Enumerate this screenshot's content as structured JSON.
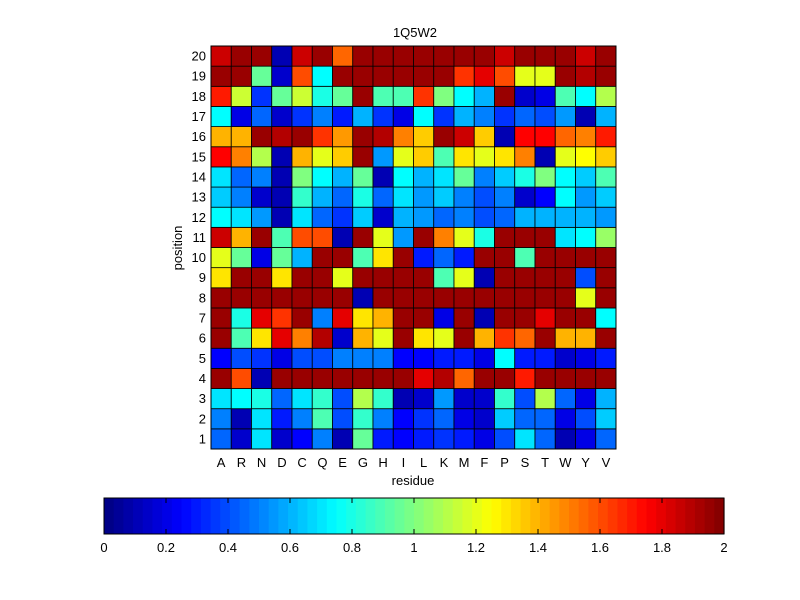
{
  "chart_data": {
    "type": "heatmap",
    "title": "1Q5W2",
    "xlabel": "residue",
    "ylabel": "position",
    "x_categories": [
      "A",
      "R",
      "N",
      "D",
      "C",
      "Q",
      "E",
      "G",
      "H",
      "I",
      "L",
      "K",
      "M",
      "F",
      "P",
      "S",
      "T",
      "W",
      "Y",
      "V"
    ],
    "y_categories": [
      "1",
      "2",
      "3",
      "4",
      "5",
      "6",
      "7",
      "8",
      "9",
      "10",
      "11",
      "12",
      "13",
      "14",
      "15",
      "16",
      "17",
      "18",
      "19",
      "20"
    ],
    "color_scale": {
      "min": 0,
      "max": 2,
      "colormap": "jet",
      "ticks": [
        "0",
        "0.2",
        "0.4",
        "0.6",
        "0.8",
        "1",
        "1.2",
        "1.4",
        "1.6",
        "1.8",
        "2"
      ]
    },
    "values": [
      [
        0.45,
        0.15,
        0.7,
        0.15,
        0.25,
        0.5,
        0.1,
        0.95,
        0.3,
        0.25,
        0.3,
        0.35,
        0.3,
        0.2,
        0.4,
        0.7,
        0.45,
        0.1,
        0.2,
        0.45
      ],
      [
        0.5,
        0.1,
        0.7,
        0.3,
        0.5,
        0.9,
        0.4,
        0.85,
        0.5,
        0.25,
        0.35,
        0.45,
        0.2,
        0.15,
        0.65,
        0.45,
        0.45,
        0.2,
        0.4,
        0.65
      ],
      [
        0.7,
        0.75,
        0.8,
        0.45,
        0.7,
        0.85,
        0.4,
        1.1,
        0.85,
        0.1,
        0.15,
        0.55,
        0.15,
        0.15,
        0.85,
        0.4,
        1.1,
        0.45,
        0.2,
        0.6
      ],
      [
        1.95,
        1.6,
        0.1,
        1.95,
        1.95,
        1.95,
        1.95,
        1.95,
        1.95,
        1.95,
        1.8,
        1.9,
        1.55,
        1.95,
        1.95,
        1.7,
        1.95,
        1.95,
        1.95,
        1.95
      ],
      [
        0.25,
        0.4,
        0.35,
        0.2,
        0.4,
        0.4,
        0.5,
        0.5,
        0.5,
        0.25,
        0.25,
        0.3,
        0.3,
        0.2,
        0.75,
        0.3,
        0.3,
        0.15,
        0.2,
        0.3
      ],
      [
        1.95,
        0.9,
        1.3,
        1.8,
        1.5,
        1.9,
        0.15,
        1.4,
        1.2,
        1.95,
        1.3,
        1.2,
        1.95,
        1.4,
        1.65,
        1.55,
        1.95,
        1.4,
        1.4,
        1.95
      ],
      [
        1.95,
        0.8,
        1.8,
        1.65,
        1.95,
        0.5,
        1.8,
        1.3,
        1.4,
        1.95,
        1.95,
        0.2,
        1.95,
        0.1,
        1.95,
        1.95,
        1.8,
        1.95,
        1.95,
        0.75
      ],
      [
        1.95,
        1.95,
        1.95,
        1.95,
        1.95,
        1.95,
        1.95,
        0.1,
        1.95,
        1.95,
        1.95,
        1.95,
        1.95,
        1.95,
        1.95,
        1.95,
        1.95,
        1.95,
        1.2,
        1.95
      ],
      [
        1.3,
        1.95,
        1.95,
        1.3,
        1.95,
        1.95,
        1.2,
        1.95,
        1.95,
        1.95,
        1.95,
        0.9,
        1.2,
        0.1,
        1.95,
        1.95,
        1.95,
        1.95,
        0.4,
        1.95
      ],
      [
        1.2,
        0.95,
        0.2,
        0.95,
        0.6,
        1.95,
        1.95,
        0.9,
        1.3,
        1.95,
        0.3,
        0.45,
        0.3,
        1.95,
        1.95,
        0.9,
        1.95,
        1.95,
        1.95,
        1.95
      ],
      [
        1.85,
        1.4,
        1.95,
        0.9,
        1.6,
        1.6,
        0.1,
        1.95,
        1.2,
        0.55,
        1.95,
        1.5,
        1.2,
        0.8,
        1.95,
        1.95,
        1.95,
        0.7,
        0.75,
        1.05
      ],
      [
        0.75,
        0.7,
        0.55,
        0.1,
        0.7,
        0.45,
        0.35,
        0.65,
        0.15,
        0.6,
        0.55,
        0.45,
        0.5,
        0.4,
        0.45,
        0.6,
        0.6,
        0.6,
        0.6,
        0.55
      ],
      [
        0.65,
        0.5,
        0.15,
        0.1,
        0.85,
        0.6,
        0.45,
        0.8,
        0.45,
        0.7,
        0.55,
        0.65,
        0.5,
        0.4,
        0.5,
        0.15,
        0.25,
        0.75,
        0.55,
        0.65
      ],
      [
        0.7,
        0.45,
        0.5,
        0.1,
        1.0,
        0.75,
        0.6,
        0.95,
        0.1,
        0.75,
        0.6,
        0.7,
        0.95,
        0.5,
        0.65,
        0.8,
        1.0,
        0.75,
        0.65,
        0.9
      ],
      [
        1.75,
        1.5,
        1.1,
        0.1,
        1.4,
        1.2,
        1.35,
        1.95,
        0.55,
        1.2,
        1.35,
        0.9,
        1.3,
        1.2,
        1.3,
        1.5,
        0.1,
        1.2,
        1.25,
        1.35
      ],
      [
        1.4,
        1.4,
        1.95,
        1.9,
        1.95,
        1.65,
        1.45,
        1.95,
        1.9,
        1.5,
        1.35,
        1.95,
        1.85,
        1.35,
        0.1,
        1.75,
        1.75,
        1.55,
        1.5,
        1.7
      ],
      [
        0.75,
        0.2,
        0.45,
        0.15,
        0.35,
        0.5,
        0.3,
        0.6,
        0.35,
        0.2,
        0.75,
        0.35,
        0.6,
        0.5,
        0.35,
        0.45,
        0.4,
        0.55,
        0.1,
        0.6
      ],
      [
        1.7,
        1.15,
        0.35,
        0.95,
        1.15,
        0.8,
        0.95,
        1.95,
        0.9,
        0.9,
        1.65,
        1.0,
        0.75,
        0.6,
        1.95,
        0.15,
        0.2,
        0.9,
        0.75,
        1.1
      ],
      [
        1.95,
        1.95,
        0.95,
        0.15,
        1.6,
        0.75,
        1.95,
        1.95,
        1.95,
        1.95,
        1.95,
        1.95,
        1.65,
        1.8,
        1.6,
        1.2,
        1.2,
        1.95,
        1.9,
        1.95
      ],
      [
        1.85,
        1.95,
        1.95,
        0.1,
        1.85,
        1.95,
        1.55,
        1.95,
        1.95,
        1.95,
        1.95,
        1.95,
        1.95,
        1.95,
        1.85,
        1.95,
        1.95,
        1.95,
        1.85,
        1.95
      ]
    ]
  }
}
